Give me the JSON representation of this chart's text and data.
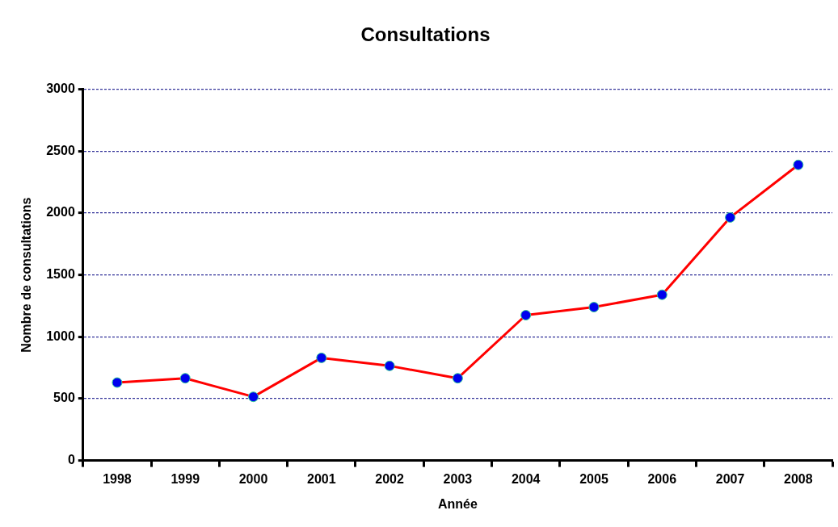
{
  "chart_data": {
    "type": "line",
    "title": "Consultations",
    "xlabel": "Année",
    "ylabel": "Nombre de consultations",
    "categories": [
      "1998",
      "1999",
      "2000",
      "2001",
      "2002",
      "2003",
      "2004",
      "2005",
      "2006",
      "2007",
      "2008"
    ],
    "series": [
      {
        "color": "#ff0000",
        "values": [
          630,
          665,
          515,
          830,
          765,
          665,
          1175,
          1240,
          1340,
          1965,
          2390
        ]
      }
    ],
    "ylim": [
      0,
      3000
    ],
    "yticks": [
      0,
      500,
      1000,
      1500,
      2000,
      2500,
      3000
    ],
    "grid": "y",
    "marker": "circle",
    "line_style": "solid",
    "legend": false
  }
}
